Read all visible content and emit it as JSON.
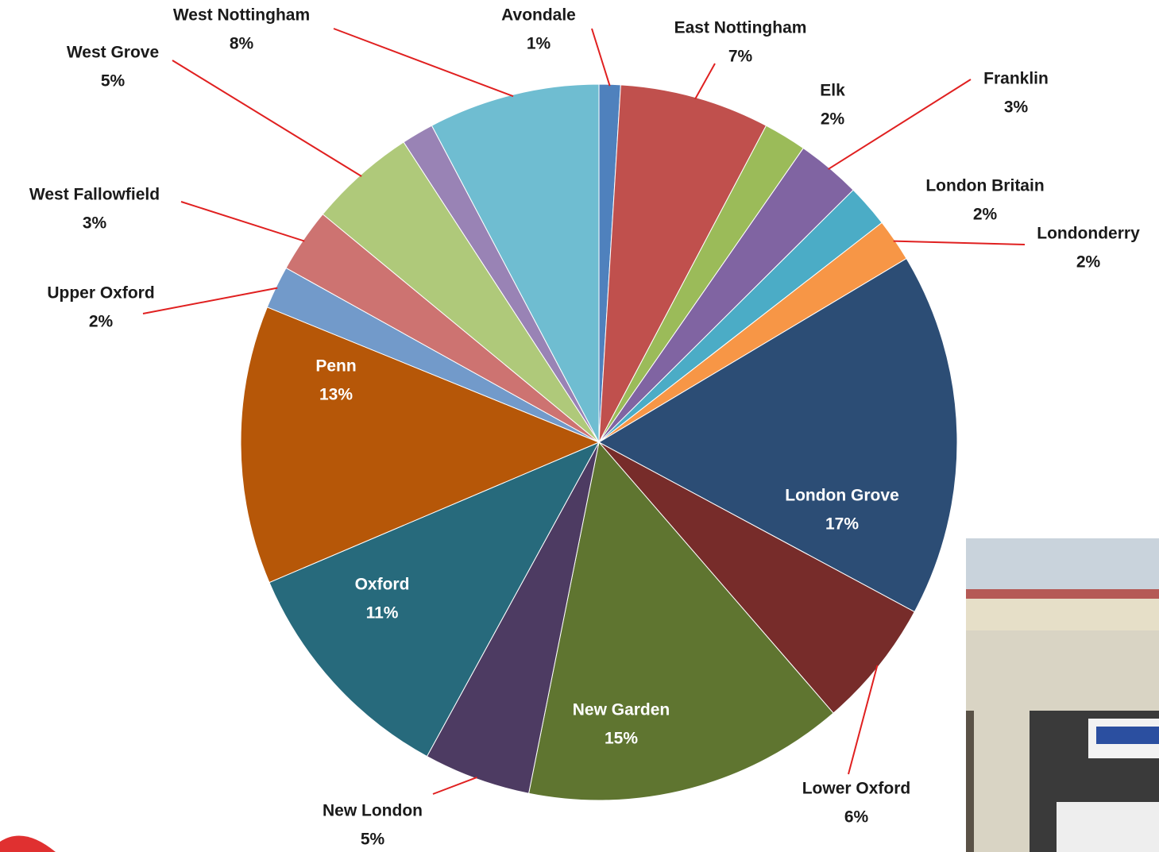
{
  "chart_data": {
    "type": "pie",
    "categories": [
      "Avondale",
      "East Nottingham",
      "Elk",
      "Franklin",
      "London Britain",
      "Londonderry",
      "London Grove",
      "Lower Oxford",
      "New Garden",
      "New London",
      "Oxford",
      "Penn",
      "Upper Oxford",
      "West Fallowfield",
      "West Grove",
      null,
      "West Nottingham"
    ],
    "values": [
      1,
      7,
      2,
      3,
      2,
      2,
      17,
      6,
      15,
      5,
      11,
      13,
      2,
      3,
      5,
      1.5,
      8
    ],
    "value_labels": [
      "1%",
      "7%",
      "2%",
      "3%",
      "2%",
      "2%",
      "17%",
      "6%",
      "15%",
      "5%",
      "11%",
      "13%",
      "2%",
      "3%",
      "5%",
      null,
      "8%"
    ],
    "colors": [
      "#4f81bd",
      "#c0504d",
      "#9bbb59",
      "#8064a2",
      "#4bacc6",
      "#f79646",
      "#2c4d75",
      "#772c2a",
      "#5f7530",
      "#4d3b62",
      "#276a7c",
      "#b65708",
      "#729aca",
      "#cd7371",
      "#afc97a",
      "#9983b5",
      "#6fbdd1"
    ]
  }
}
